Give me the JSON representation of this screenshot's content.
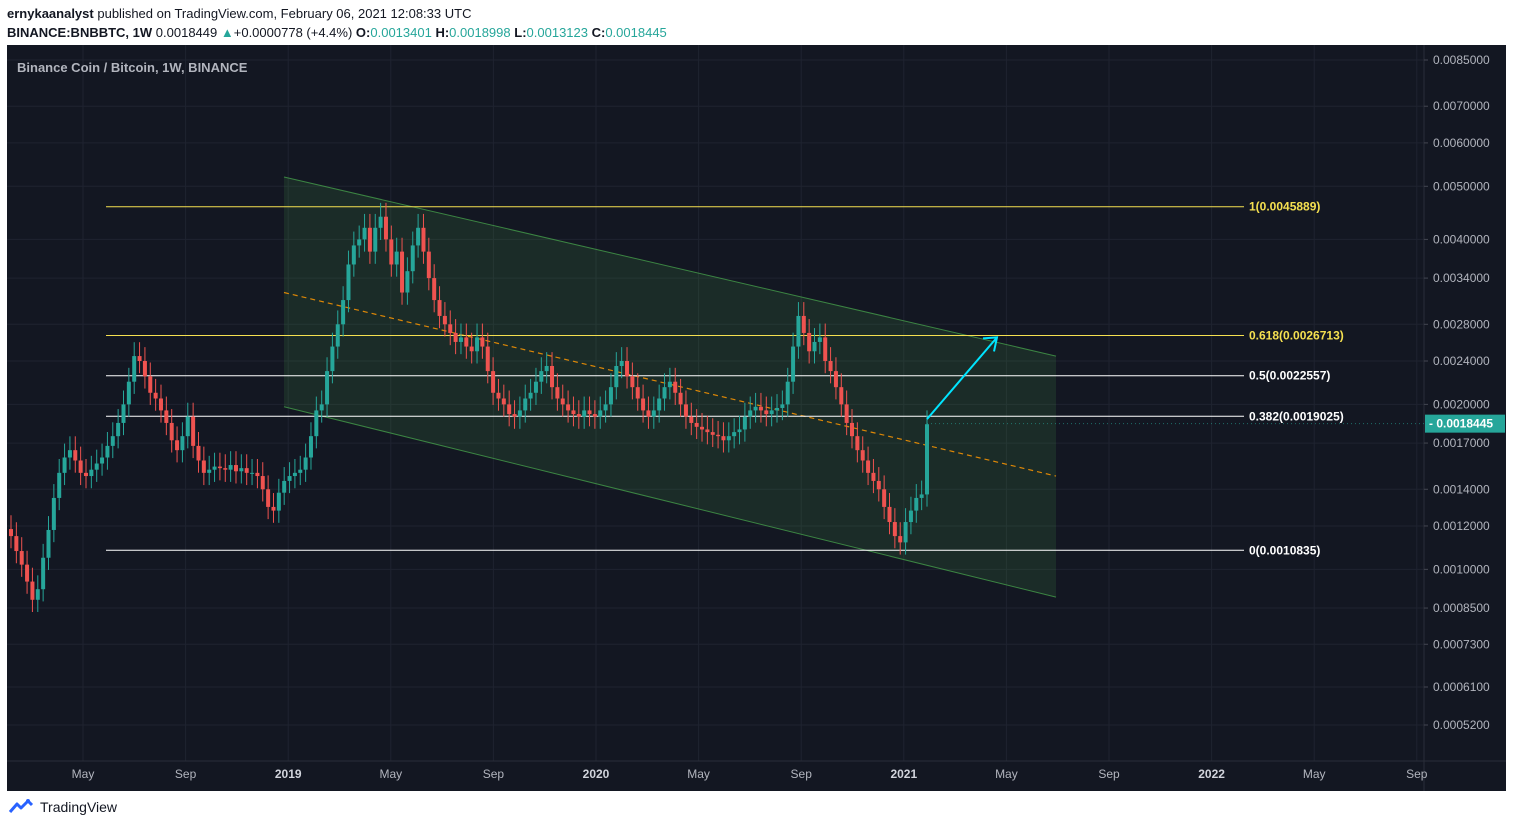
{
  "header": {
    "author": "ernykaanalyst",
    "published": "published on TradingView.com, February 06, 2021 12:08:33 UTC",
    "symbol": "BINANCE:BNBBTC, 1W",
    "last": "0.0018449",
    "change_arrow": "▲",
    "change": "+0.0000778 (+4.4%)",
    "o_label": "O:",
    "o_val": "0.0013401",
    "h_label": "H:",
    "h_val": "0.0018998",
    "l_label": "L:",
    "l_val": "0.0013123",
    "c_label": "C:",
    "c_val": "0.0018445"
  },
  "chart_title": "Binance Coin / Bitcoin, 1W, BINANCE",
  "footer": {
    "brand": "TradingView",
    "logo_icon": "tradingview-logo-icon"
  },
  "colors": {
    "background": "#131722",
    "up": "#26a69a",
    "down": "#ef5350",
    "fib_yellow": "#f5e050",
    "fib_white": "#ffffff",
    "channel_line": "#4caf50",
    "midline": "#ff9800",
    "arrow": "#00e5ff",
    "price_tag": "#26a69a"
  },
  "chart_data": {
    "type": "candlestick",
    "title": "Binance Coin / Bitcoin, 1W, BINANCE",
    "y_scale": "log",
    "ylim": [
      0.00046,
      0.0089
    ],
    "y_ticks": [
      "0.0085000",
      "0.0070000",
      "0.0060000",
      "0.0050000",
      "0.0040000",
      "0.0034000",
      "0.0028000",
      "0.0024000",
      "0.0020000",
      "0.0017000",
      "0.0014000",
      "0.0012000",
      "0.0010000",
      "0.0008500",
      "0.0007300",
      "0.0006100",
      "0.0005200"
    ],
    "x_ticks": [
      {
        "label": "May",
        "bold": false
      },
      {
        "label": "Sep",
        "bold": false
      },
      {
        "label": "2019",
        "bold": true
      },
      {
        "label": "May",
        "bold": false
      },
      {
        "label": "Sep",
        "bold": false
      },
      {
        "label": "2020",
        "bold": true
      },
      {
        "label": "May",
        "bold": false
      },
      {
        "label": "Sep",
        "bold": false
      },
      {
        "label": "2021",
        "bold": true
      },
      {
        "label": "May",
        "bold": false
      },
      {
        "label": "Sep",
        "bold": false
      },
      {
        "label": "2022",
        "bold": true
      },
      {
        "label": "May",
        "bold": false
      },
      {
        "label": "Sep",
        "bold": false
      }
    ],
    "grid": true,
    "current_price": "0.0018445",
    "fib_levels": [
      {
        "label": "1(0.0045889)",
        "value": 0.0045889,
        "color": "yellow"
      },
      {
        "label": "0.618(0.0026713)",
        "value": 0.0026713,
        "color": "yellow"
      },
      {
        "label": "0.5(0.0022557)",
        "value": 0.0022557,
        "color": "white"
      },
      {
        "label": "0.382(0.0019025)",
        "value": 0.0019025,
        "color": "white"
      },
      {
        "label": "0(0.0010835)",
        "value": 0.0010835,
        "color": "white"
      }
    ],
    "channel": {
      "start": "2018-12",
      "end": "2021-08",
      "upper": [
        0.0052,
        0.00245
      ],
      "lower": [
        0.00198,
        0.00089
      ],
      "mid": [
        0.0032,
        0.00148
      ]
    },
    "arrow": {
      "from": [
        0.00188
      ],
      "to": [
        0.00265
      ]
    },
    "weekly_close": [
      0.00115,
      0.00108,
      0.00102,
      0.00095,
      0.00088,
      0.00092,
      0.00105,
      0.00118,
      0.00135,
      0.0015,
      0.0016,
      0.00165,
      0.00158,
      0.0015,
      0.00148,
      0.00152,
      0.00156,
      0.0016,
      0.00168,
      0.00175,
      0.00185,
      0.002,
      0.0022,
      0.00245,
      0.0024,
      0.00225,
      0.0021,
      0.00205,
      0.00195,
      0.00185,
      0.00172,
      0.00165,
      0.00175,
      0.0019,
      0.00168,
      0.00158,
      0.0015,
      0.00152,
      0.00154,
      0.00153,
      0.00152,
      0.00155,
      0.00151,
      0.00153,
      0.0015,
      0.0015,
      0.00148,
      0.0014,
      0.0013,
      0.00128,
      0.00138,
      0.00145,
      0.00148,
      0.0015,
      0.00152,
      0.0016,
      0.00175,
      0.00195,
      0.002,
      0.0023,
      0.00255,
      0.0028,
      0.0031,
      0.0036,
      0.0039,
      0.004,
      0.0042,
      0.0038,
      0.0042,
      0.0044,
      0.004,
      0.0036,
      0.0038,
      0.0032,
      0.0035,
      0.0039,
      0.0042,
      0.0038,
      0.0034,
      0.0031,
      0.0029,
      0.0028,
      0.0027,
      0.0026,
      0.00265,
      0.00255,
      0.0025,
      0.00265,
      0.00255,
      0.0023,
      0.0021,
      0.00205,
      0.002,
      0.00192,
      0.0019,
      0.00195,
      0.00205,
      0.0021,
      0.0022,
      0.0023,
      0.00235,
      0.00215,
      0.00205,
      0.002,
      0.00195,
      0.00192,
      0.0019,
      0.00195,
      0.00192,
      0.0019,
      0.00195,
      0.002,
      0.00215,
      0.00235,
      0.0024,
      0.00225,
      0.00215,
      0.00205,
      0.00195,
      0.0019,
      0.00195,
      0.00205,
      0.00215,
      0.0022,
      0.0021,
      0.002,
      0.0019,
      0.00185,
      0.00182,
      0.0018,
      0.00178,
      0.00176,
      0.00175,
      0.00172,
      0.00175,
      0.00178,
      0.0018,
      0.0019,
      0.00195,
      0.00198,
      0.00195,
      0.00192,
      0.00195,
      0.00197,
      0.002,
      0.0022,
      0.00255,
      0.0029,
      0.0027,
      0.0025,
      0.0026,
      0.00265,
      0.0024,
      0.0023,
      0.00215,
      0.002,
      0.00185,
      0.00175,
      0.00165,
      0.00158,
      0.0015,
      0.00145,
      0.0014,
      0.0013,
      0.00122,
      0.00115,
      0.00112,
      0.00122,
      0.00128,
      0.00135,
      0.00137,
      0.00184
    ]
  }
}
